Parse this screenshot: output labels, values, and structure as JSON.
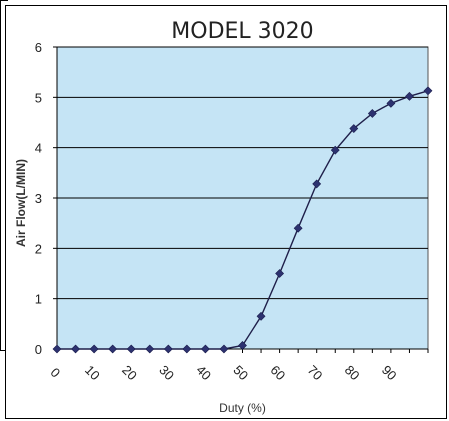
{
  "chart_data": {
    "type": "line",
    "title": "MODEL 3020",
    "xlabel": "Duty (%)",
    "ylabel": "Air Flow(L/MIN)",
    "xticks": [
      "0",
      "10",
      "20",
      "30",
      "40",
      "50",
      "60",
      "70",
      "80",
      "90"
    ],
    "yticks": [
      "0",
      "1",
      "2",
      "3",
      "4",
      "5",
      "6"
    ],
    "ylim": [
      0,
      6
    ],
    "grid": true,
    "x": [
      0,
      5,
      10,
      15,
      20,
      25,
      30,
      35,
      40,
      45,
      50,
      55,
      60,
      65,
      70,
      75,
      80,
      85,
      90,
      95,
      100
    ],
    "y": [
      0,
      0,
      0,
      0,
      0,
      0,
      0,
      0,
      0,
      0,
      0.07,
      0.65,
      1.5,
      2.4,
      3.28,
      3.95,
      4.38,
      4.68,
      4.88,
      5.02,
      5.13
    ],
    "colors": {
      "plot_background": "#c5e4f5",
      "line": "#1f1f4a",
      "marker": "#2d3270",
      "gridline": "#000000"
    }
  }
}
